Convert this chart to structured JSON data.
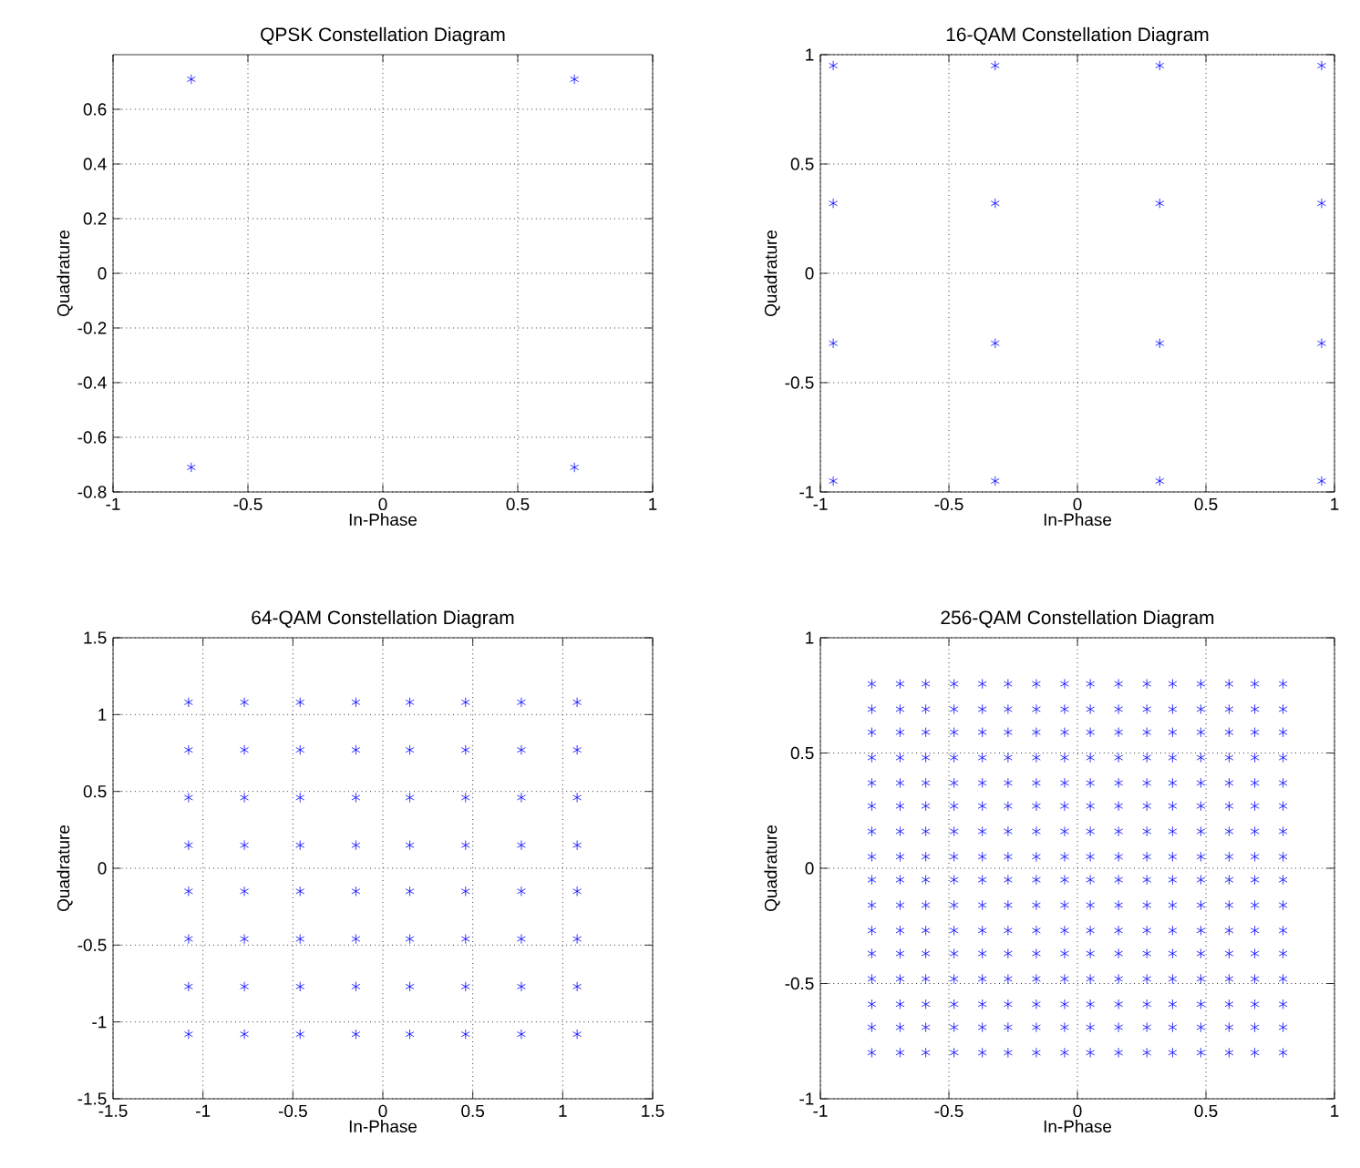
{
  "chart_data": [
    {
      "type": "scatter",
      "title": "QPSK Constellation Diagram",
      "xlabel": "In-Phase",
      "ylabel": "Quadrature",
      "color": "#0000ff",
      "marker": "cross",
      "grid": true,
      "xlim": [
        -1,
        1
      ],
      "xticks": [
        -1,
        -0.5,
        0,
        0.5,
        1
      ],
      "ylim": [
        -0.8,
        0.8
      ],
      "yticks": [
        -0.8,
        -0.6,
        -0.4,
        -0.2,
        0,
        0.2,
        0.4,
        0.6
      ],
      "x": [
        -0.71,
        -0.71,
        0.71,
        0.71
      ],
      "values": [
        -0.71,
        0.71,
        -0.71,
        0.71
      ]
    },
    {
      "type": "scatter",
      "title": "16-QAM Constellation Diagram",
      "xlabel": "In-Phase",
      "ylabel": "Quadrature",
      "color": "#0000ff",
      "marker": "cross",
      "grid": true,
      "xlim": [
        -1,
        1
      ],
      "xticks": [
        -1,
        -0.5,
        0,
        0.5,
        1
      ],
      "ylim": [
        -1,
        1
      ],
      "yticks": [
        -1,
        -0.5,
        0,
        0.5,
        1
      ],
      "x": [
        -0.95,
        -0.95,
        -0.95,
        -0.95,
        -0.32,
        -0.32,
        -0.32,
        -0.32,
        0.32,
        0.32,
        0.32,
        0.32,
        0.95,
        0.95,
        0.95,
        0.95
      ],
      "values": [
        -0.95,
        -0.32,
        0.32,
        0.95,
        -0.95,
        -0.32,
        0.32,
        0.95,
        -0.95,
        -0.32,
        0.32,
        0.95,
        -0.95,
        -0.32,
        0.32,
        0.95
      ]
    },
    {
      "type": "scatter",
      "title": "64-QAM Constellation Diagram",
      "xlabel": "In-Phase",
      "ylabel": "Quadrature",
      "color": "#0000ff",
      "marker": "cross",
      "grid": true,
      "xlim": [
        -1.5,
        1.5
      ],
      "xticks": [
        -1.5,
        -1,
        -0.5,
        0,
        0.5,
        1,
        1.5
      ],
      "ylim": [
        -1.5,
        1.5
      ],
      "yticks": [
        -1.5,
        -1,
        -0.5,
        0,
        0.5,
        1,
        1.5
      ],
      "x": [
        -1.08,
        -1.08,
        -1.08,
        -1.08,
        -1.08,
        -1.08,
        -1.08,
        -1.08,
        -0.77,
        -0.77,
        -0.77,
        -0.77,
        -0.77,
        -0.77,
        -0.77,
        -0.77,
        -0.46,
        -0.46,
        -0.46,
        -0.46,
        -0.46,
        -0.46,
        -0.46,
        -0.46,
        -0.15,
        -0.15,
        -0.15,
        -0.15,
        -0.15,
        -0.15,
        -0.15,
        -0.15,
        0.15,
        0.15,
        0.15,
        0.15,
        0.15,
        0.15,
        0.15,
        0.15,
        0.46,
        0.46,
        0.46,
        0.46,
        0.46,
        0.46,
        0.46,
        0.46,
        0.77,
        0.77,
        0.77,
        0.77,
        0.77,
        0.77,
        0.77,
        0.77,
        1.08,
        1.08,
        1.08,
        1.08,
        1.08,
        1.08,
        1.08,
        1.08
      ],
      "values": [
        -1.08,
        -0.77,
        -0.46,
        -0.15,
        0.15,
        0.46,
        0.77,
        1.08,
        -1.08,
        -0.77,
        -0.46,
        -0.15,
        0.15,
        0.46,
        0.77,
        1.08,
        -1.08,
        -0.77,
        -0.46,
        -0.15,
        0.15,
        0.46,
        0.77,
        1.08,
        -1.08,
        -0.77,
        -0.46,
        -0.15,
        0.15,
        0.46,
        0.77,
        1.08,
        -1.08,
        -0.77,
        -0.46,
        -0.15,
        0.15,
        0.46,
        0.77,
        1.08,
        -1.08,
        -0.77,
        -0.46,
        -0.15,
        0.15,
        0.46,
        0.77,
        1.08,
        -1.08,
        -0.77,
        -0.46,
        -0.15,
        0.15,
        0.46,
        0.77,
        1.08,
        -1.08,
        -0.77,
        -0.46,
        -0.15,
        0.15,
        0.46,
        0.77,
        1.08
      ]
    },
    {
      "type": "scatter",
      "title": "256-QAM Constellation Diagram",
      "xlabel": "In-Phase",
      "ylabel": "Quadrature",
      "color": "#0000ff",
      "marker": "cross",
      "grid": true,
      "xlim": [
        -1,
        1
      ],
      "xticks": [
        -1,
        -0.5,
        0,
        0.5,
        1
      ],
      "ylim": [
        -1,
        1
      ],
      "yticks": [
        -1,
        -0.5,
        0,
        0.5,
        1
      ],
      "x": [
        -0.8,
        -0.8,
        -0.8,
        -0.8,
        -0.8,
        -0.8,
        -0.8,
        -0.8,
        -0.8,
        -0.8,
        -0.8,
        -0.8,
        -0.8,
        -0.8,
        -0.8,
        -0.8,
        -0.69,
        -0.69,
        -0.69,
        -0.69,
        -0.69,
        -0.69,
        -0.69,
        -0.69,
        -0.69,
        -0.69,
        -0.69,
        -0.69,
        -0.69,
        -0.69,
        -0.69,
        -0.69,
        -0.59,
        -0.59,
        -0.59,
        -0.59,
        -0.59,
        -0.59,
        -0.59,
        -0.59,
        -0.59,
        -0.59,
        -0.59,
        -0.59,
        -0.59,
        -0.59,
        -0.59,
        -0.59,
        -0.48,
        -0.48,
        -0.48,
        -0.48,
        -0.48,
        -0.48,
        -0.48,
        -0.48,
        -0.48,
        -0.48,
        -0.48,
        -0.48,
        -0.48,
        -0.48,
        -0.48,
        -0.48,
        -0.37,
        -0.37,
        -0.37,
        -0.37,
        -0.37,
        -0.37,
        -0.37,
        -0.37,
        -0.37,
        -0.37,
        -0.37,
        -0.37,
        -0.37,
        -0.37,
        -0.37,
        -0.37,
        -0.27,
        -0.27,
        -0.27,
        -0.27,
        -0.27,
        -0.27,
        -0.27,
        -0.27,
        -0.27,
        -0.27,
        -0.27,
        -0.27,
        -0.27,
        -0.27,
        -0.27,
        -0.27,
        -0.16,
        -0.16,
        -0.16,
        -0.16,
        -0.16,
        -0.16,
        -0.16,
        -0.16,
        -0.16,
        -0.16,
        -0.16,
        -0.16,
        -0.16,
        -0.16,
        -0.16,
        -0.16,
        -0.05,
        -0.05,
        -0.05,
        -0.05,
        -0.05,
        -0.05,
        -0.05,
        -0.05,
        -0.05,
        -0.05,
        -0.05,
        -0.05,
        -0.05,
        -0.05,
        -0.05,
        -0.05,
        0.05,
        0.05,
        0.05,
        0.05,
        0.05,
        0.05,
        0.05,
        0.05,
        0.05,
        0.05,
        0.05,
        0.05,
        0.05,
        0.05,
        0.05,
        0.05,
        0.16,
        0.16,
        0.16,
        0.16,
        0.16,
        0.16,
        0.16,
        0.16,
        0.16,
        0.16,
        0.16,
        0.16,
        0.16,
        0.16,
        0.16,
        0.16,
        0.27,
        0.27,
        0.27,
        0.27,
        0.27,
        0.27,
        0.27,
        0.27,
        0.27,
        0.27,
        0.27,
        0.27,
        0.27,
        0.27,
        0.27,
        0.27,
        0.37,
        0.37,
        0.37,
        0.37,
        0.37,
        0.37,
        0.37,
        0.37,
        0.37,
        0.37,
        0.37,
        0.37,
        0.37,
        0.37,
        0.37,
        0.37,
        0.48,
        0.48,
        0.48,
        0.48,
        0.48,
        0.48,
        0.48,
        0.48,
        0.48,
        0.48,
        0.48,
        0.48,
        0.48,
        0.48,
        0.48,
        0.48,
        0.59,
        0.59,
        0.59,
        0.59,
        0.59,
        0.59,
        0.59,
        0.59,
        0.59,
        0.59,
        0.59,
        0.59,
        0.59,
        0.59,
        0.59,
        0.59,
        0.69,
        0.69,
        0.69,
        0.69,
        0.69,
        0.69,
        0.69,
        0.69,
        0.69,
        0.69,
        0.69,
        0.69,
        0.69,
        0.69,
        0.69,
        0.69,
        0.8,
        0.8,
        0.8,
        0.8,
        0.8,
        0.8,
        0.8,
        0.8,
        0.8,
        0.8,
        0.8,
        0.8,
        0.8,
        0.8,
        0.8,
        0.8
      ],
      "values": [
        -0.8,
        -0.69,
        -0.59,
        -0.48,
        -0.37,
        -0.27,
        -0.16,
        -0.05,
        0.05,
        0.16,
        0.27,
        0.37,
        0.48,
        0.59,
        0.69,
        0.8,
        -0.8,
        -0.69,
        -0.59,
        -0.48,
        -0.37,
        -0.27,
        -0.16,
        -0.05,
        0.05,
        0.16,
        0.27,
        0.37,
        0.48,
        0.59,
        0.69,
        0.8,
        -0.8,
        -0.69,
        -0.59,
        -0.48,
        -0.37,
        -0.27,
        -0.16,
        -0.05,
        0.05,
        0.16,
        0.27,
        0.37,
        0.48,
        0.59,
        0.69,
        0.8,
        -0.8,
        -0.69,
        -0.59,
        -0.48,
        -0.37,
        -0.27,
        -0.16,
        -0.05,
        0.05,
        0.16,
        0.27,
        0.37,
        0.48,
        0.59,
        0.69,
        0.8,
        -0.8,
        -0.69,
        -0.59,
        -0.48,
        -0.37,
        -0.27,
        -0.16,
        -0.05,
        0.05,
        0.16,
        0.27,
        0.37,
        0.48,
        0.59,
        0.69,
        0.8,
        -0.8,
        -0.69,
        -0.59,
        -0.48,
        -0.37,
        -0.27,
        -0.16,
        -0.05,
        0.05,
        0.16,
        0.27,
        0.37,
        0.48,
        0.59,
        0.69,
        0.8,
        -0.8,
        -0.69,
        -0.59,
        -0.48,
        -0.37,
        -0.27,
        -0.16,
        -0.05,
        0.05,
        0.16,
        0.27,
        0.37,
        0.48,
        0.59,
        0.69,
        0.8,
        -0.8,
        -0.69,
        -0.59,
        -0.48,
        -0.37,
        -0.27,
        -0.16,
        -0.05,
        0.05,
        0.16,
        0.27,
        0.37,
        0.48,
        0.59,
        0.69,
        0.8,
        -0.8,
        -0.69,
        -0.59,
        -0.48,
        -0.37,
        -0.27,
        -0.16,
        -0.05,
        0.05,
        0.16,
        0.27,
        0.37,
        0.48,
        0.59,
        0.69,
        0.8,
        -0.8,
        -0.69,
        -0.59,
        -0.48,
        -0.37,
        -0.27,
        -0.16,
        -0.05,
        0.05,
        0.16,
        0.27,
        0.37,
        0.48,
        0.59,
        0.69,
        0.8,
        -0.8,
        -0.69,
        -0.59,
        -0.48,
        -0.37,
        -0.27,
        -0.16,
        -0.05,
        0.05,
        0.16,
        0.27,
        0.37,
        0.48,
        0.59,
        0.69,
        0.8,
        -0.8,
        -0.69,
        -0.59,
        -0.48,
        -0.37,
        -0.27,
        -0.16,
        -0.05,
        0.05,
        0.16,
        0.27,
        0.37,
        0.48,
        0.59,
        0.69,
        0.8,
        -0.8,
        -0.69,
        -0.59,
        -0.48,
        -0.37,
        -0.27,
        -0.16,
        -0.05,
        0.05,
        0.16,
        0.27,
        0.37,
        0.48,
        0.59,
        0.69,
        0.8,
        -0.8,
        -0.69,
        -0.59,
        -0.48,
        -0.37,
        -0.27,
        -0.16,
        -0.05,
        0.05,
        0.16,
        0.27,
        0.37,
        0.48,
        0.59,
        0.69,
        0.8,
        -0.8,
        -0.69,
        -0.59,
        -0.48,
        -0.37,
        -0.27,
        -0.16,
        -0.05,
        0.05,
        0.16,
        0.27,
        0.37,
        0.48,
        0.59,
        0.69,
        0.8,
        -0.8,
        -0.69,
        -0.59,
        -0.48,
        -0.37,
        -0.27,
        -0.16,
        -0.05,
        0.05,
        0.16,
        0.27,
        0.37,
        0.48,
        0.59,
        0.69,
        0.8
      ]
    }
  ]
}
